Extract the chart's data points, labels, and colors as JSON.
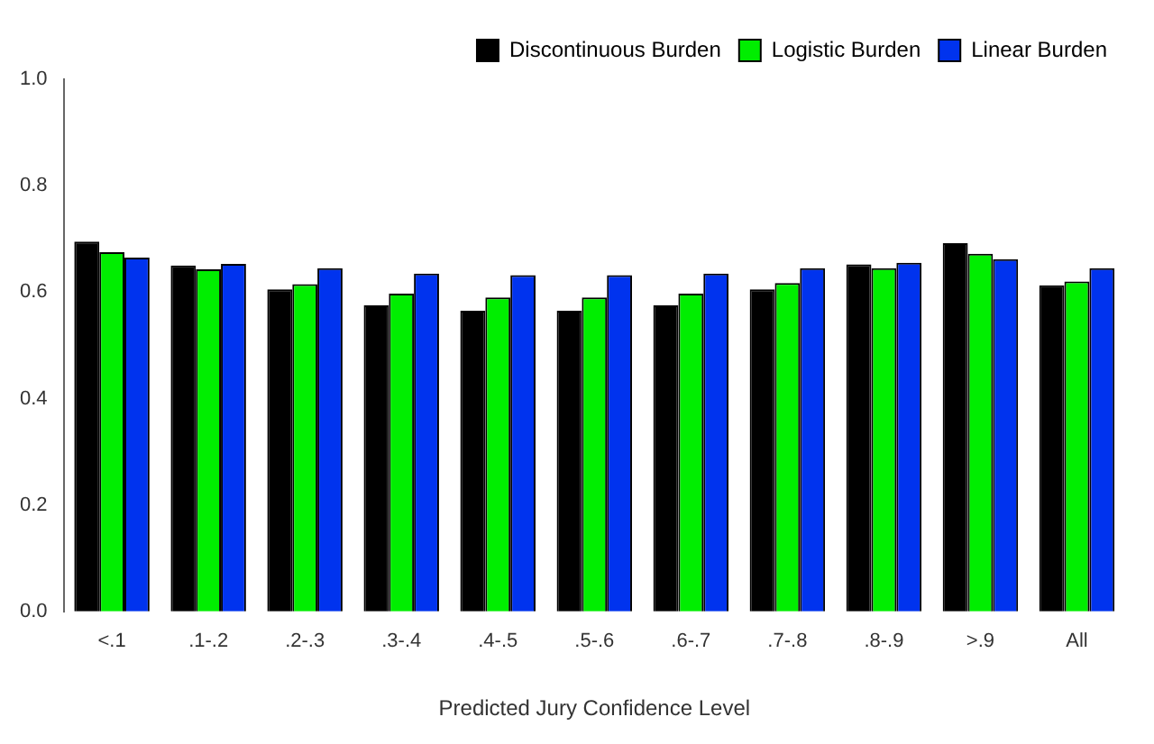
{
  "chart_data": {
    "type": "bar",
    "xlabel": "Predicted Jury Confidence Level",
    "categories": [
      "<.1",
      ".1-.2",
      ".2-.3",
      ".3-.4",
      ".4-.5",
      ".5-.6",
      ".6-.7",
      ".7-.8",
      ".8-.9",
      ">.9",
      "All"
    ],
    "series": [
      {
        "name": "Discontinuous Burden",
        "color": "#000000",
        "values": [
          0.695,
          0.65,
          0.605,
          0.575,
          0.565,
          0.565,
          0.575,
          0.605,
          0.652,
          0.692,
          0.613
        ]
      },
      {
        "name": "Logistic Burden",
        "color": "#00ee00",
        "values": [
          0.675,
          0.643,
          0.615,
          0.597,
          0.59,
          0.59,
          0.597,
          0.617,
          0.645,
          0.672,
          0.62
        ]
      },
      {
        "name": "Linear Burden",
        "color": "#0033ee",
        "values": [
          0.665,
          0.653,
          0.645,
          0.635,
          0.632,
          0.632,
          0.635,
          0.645,
          0.655,
          0.662,
          0.645
        ]
      }
    ],
    "ylim": [
      0,
      1
    ],
    "yticks": [
      {
        "value": 0,
        "label": "0.0"
      },
      {
        "value": 0.2,
        "label": "0.2"
      },
      {
        "value": 0.4,
        "label": "0.4"
      },
      {
        "value": 0.6,
        "label": "0.6"
      },
      {
        "value": 0.8,
        "label": "0.8"
      },
      {
        "value": 1,
        "label": "1.0"
      }
    ],
    "legend": "top right",
    "grid": false
  }
}
